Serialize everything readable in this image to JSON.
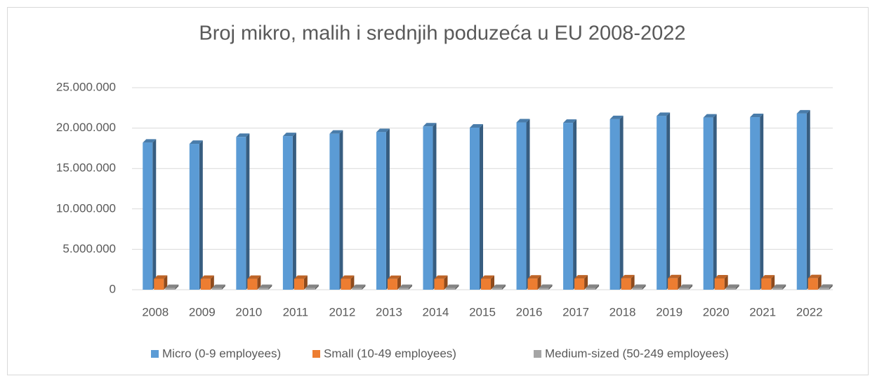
{
  "chart_data": {
    "type": "bar3d",
    "title": "Broj mikro, malih i srednjih poduzeća u EU 2008-2022",
    "categories": [
      "2008",
      "2009",
      "2010",
      "2011",
      "2012",
      "2013",
      "2014",
      "2015",
      "2016",
      "2017",
      "2018",
      "2019",
      "2020",
      "2021",
      "2022"
    ],
    "series": [
      {
        "name": "Micro (0-9 employees)",
        "color": "#5b9bd5",
        "values": [
          18200000,
          18050000,
          18900000,
          19000000,
          19300000,
          19500000,
          20200000,
          20050000,
          20700000,
          20650000,
          21100000,
          21500000,
          21300000,
          21350000,
          21800000
        ]
      },
      {
        "name": "Small (10-49 employees)",
        "color": "#ed7d31",
        "values": [
          1350000,
          1330000,
          1340000,
          1340000,
          1340000,
          1320000,
          1330000,
          1340000,
          1370000,
          1380000,
          1400000,
          1410000,
          1390000,
          1380000,
          1420000
        ]
      },
      {
        "name": "Medium-sized (50-249 employees)",
        "color": "#a5a5a5",
        "values": [
          210000,
          210000,
          210000,
          210000,
          210000,
          210000,
          210000,
          210000,
          215000,
          215000,
          220000,
          220000,
          220000,
          220000,
          225000
        ]
      }
    ],
    "ylim": [
      0,
      25000000
    ],
    "yticks": [
      0,
      {
        "value": 5000000,
        "label": "5.000.000"
      },
      {
        "value": 10000000,
        "label": "10.000.000"
      },
      {
        "value": 15000000,
        "label": "15.000.000"
      },
      {
        "value": 20000000,
        "label": "20.000.000"
      },
      {
        "value": 25000000,
        "label": "25.000.000"
      }
    ],
    "grid": true,
    "legend": "bottom"
  }
}
